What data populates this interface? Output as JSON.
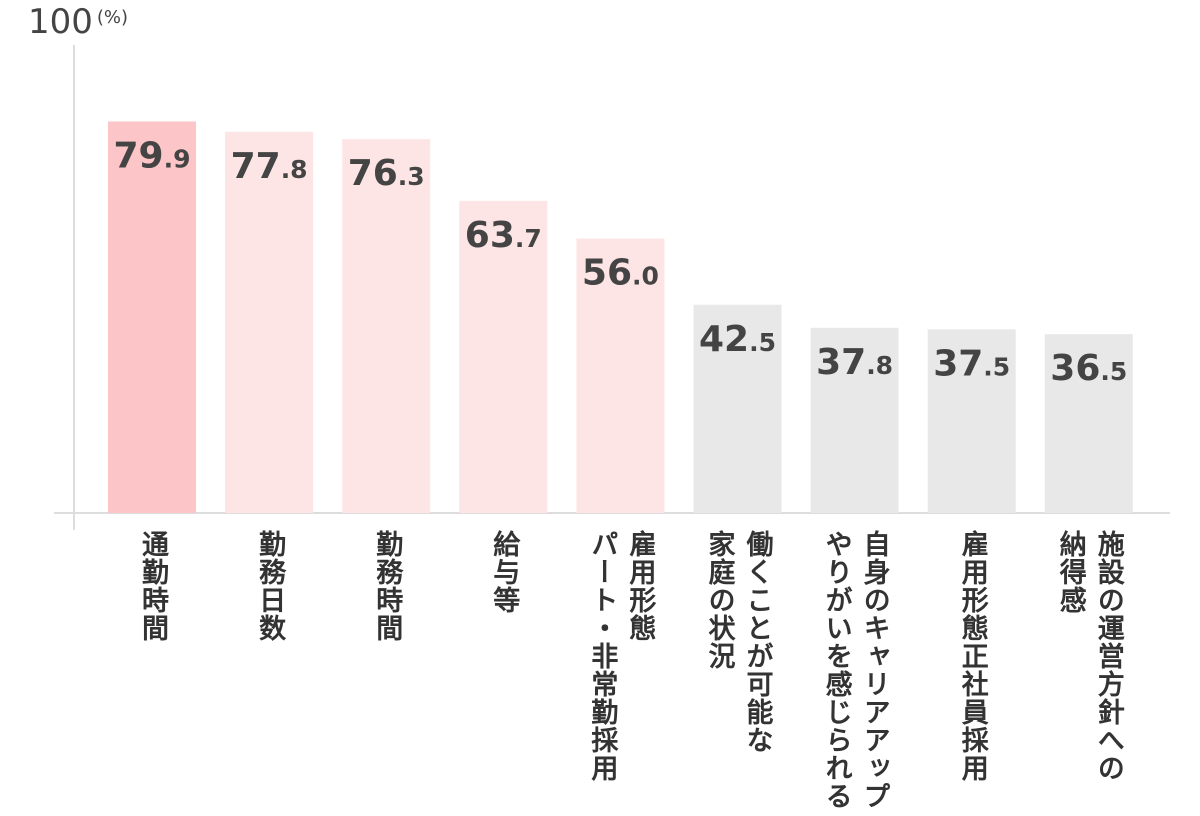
{
  "chart_data": {
    "type": "bar",
    "y_max_label": "100",
    "y_unit": "(%)",
    "ylim": [
      0,
      100
    ],
    "categories": [
      [
        "通勤時間"
      ],
      [
        "勤務日数"
      ],
      [
        "勤務時間"
      ],
      [
        "給与等"
      ],
      [
        "雇用形態",
        "パート・非常勤採用"
      ],
      [
        "働くことが可能な",
        "家庭の状況"
      ],
      [
        "自身のキャリアアップ",
        "やりがいを感じられる"
      ],
      [
        "雇用形態正社員採用"
      ],
      [
        "施設の運営方針への",
        "納得感"
      ]
    ],
    "values": [
      79.9,
      77.8,
      76.3,
      63.7,
      56.0,
      42.5,
      37.8,
      37.5,
      36.5
    ],
    "value_labels": [
      [
        "79",
        ".9"
      ],
      [
        "77",
        ".8"
      ],
      [
        "76",
        ".3"
      ],
      [
        "63",
        ".7"
      ],
      [
        "56",
        ".0"
      ],
      [
        "42",
        ".5"
      ],
      [
        "37",
        ".8"
      ],
      [
        "37",
        ".5"
      ],
      [
        "36",
        ".5"
      ]
    ],
    "bar_colors": [
      "#fcc5c8",
      "#fde4e5",
      "#fde4e5",
      "#fde4e5",
      "#fde4e5",
      "#e8e8e8",
      "#e8e8e8",
      "#e8e8e8",
      "#e8e8e8"
    ],
    "axis_color": "#dddddd",
    "grid": false
  }
}
